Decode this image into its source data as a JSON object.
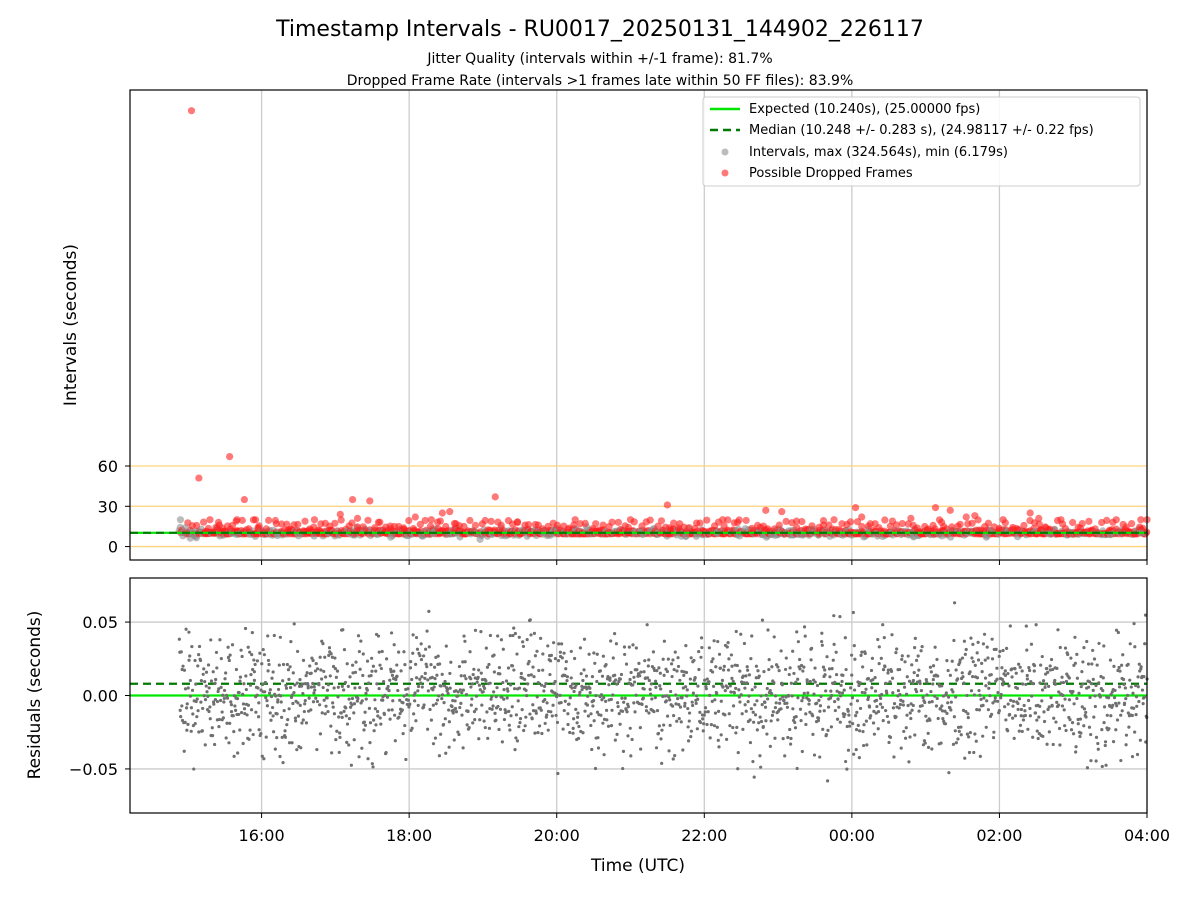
{
  "chart_data": [
    {
      "type": "scatter",
      "title": "Timestamp Intervals - RU0017_20250131_144902_226117",
      "subtitle_lines": [
        "Jitter Quality (intervals within +/-1 frame): 81.7%",
        "Dropped Frame Rate (intervals >1 frames late within 50 FF files): 83.9%"
      ],
      "xlabel": "",
      "ylabel": "Intervals (seconds)",
      "x_axis_kind": "time (UTC)",
      "xlim": [
        "2025-01-31 14:13",
        "2025-02-01 04:00"
      ],
      "ylim": [
        -10,
        340
      ],
      "yticks": [
        0,
        30,
        60
      ],
      "reference_lines_y": [
        0,
        30,
        60
      ],
      "reference_line_color": "#ffd37a",
      "grid": "vertical lines at x ticks",
      "legend_position": "top-right",
      "legend": [
        "Expected (10.240s), (25.00000 fps)",
        "Median (10.248 +/- 0.283 s), (24.98117 +/- 0.22 fps)",
        "Intervals, max (324.564s), min (6.179s)",
        "Possible Dropped Frames"
      ],
      "series": [
        {
          "name": "Expected (10.240s), (25.00000 fps)",
          "kind": "line",
          "y": 10.24,
          "color": "#00e600"
        },
        {
          "name": "Median (10.248 +/- 0.283 s), (24.98117 +/- 0.22 fps)",
          "kind": "dashed-line",
          "y": 10.248,
          "color": "#007a00"
        },
        {
          "name": "Intervals, max (324.564s), min (6.179s)",
          "kind": "points",
          "color": "#909090",
          "x": [
            "14:54",
            "14:56",
            "14:58",
            "15:02",
            "15:40",
            "16:30",
            "17:45",
            "18:20",
            "19:55",
            "21:10",
            "21:45",
            "22:10",
            "23:20",
            "00:40",
            "01:50",
            "02:40",
            "03:30",
            "03:55"
          ],
          "y": [
            20,
            8,
            14,
            6.2,
            9,
            8,
            7,
            9.5,
            8.5,
            9,
            7.5,
            10,
            8.5,
            9,
            8,
            9.5,
            9,
            10
          ]
        },
        {
          "name": "Possible Dropped Frames",
          "kind": "points",
          "color": "#ff2020",
          "x": [
            "15:03",
            "15:09",
            "15:34",
            "15:46",
            "15:40",
            "15:18",
            "15:25",
            "15:55",
            "16:12",
            "16:43",
            "17:04",
            "17:14",
            "17:18",
            "17:28",
            "17:35",
            "17:48",
            "18:05",
            "18:18",
            "18:27",
            "18:33",
            "18:38",
            "19:10",
            "19:28",
            "19:45",
            "20:15",
            "21:00",
            "21:30",
            "21:40",
            "22:15",
            "22:27",
            "22:50",
            "23:03",
            "23:15",
            "23:37",
            "00:03",
            "00:08",
            "00:15",
            "00:33",
            "00:48",
            "01:08",
            "01:13",
            "01:20",
            "01:33",
            "01:40",
            "02:03",
            "02:25",
            "02:32",
            "02:50",
            "03:35",
            "03:55",
            "04:00"
          ],
          "y": [
            324.6,
            51,
            67,
            35,
            20,
            20,
            18,
            20,
            17,
            20,
            24,
            35,
            21,
            34,
            18,
            15,
            22,
            20,
            25,
            26,
            17,
            37,
            18,
            16,
            20,
            20,
            31,
            17,
            20,
            18,
            27,
            26,
            19,
            16,
            29,
            22,
            17,
            19,
            21,
            29,
            18,
            27,
            22,
            23,
            20,
            25,
            21,
            20,
            20,
            20,
            20
          ]
        }
      ]
    },
    {
      "type": "scatter",
      "xlabel": "Time (UTC)",
      "ylabel": "Residuals (seconds)",
      "xlim": [
        "2025-01-31 14:13",
        "2025-02-01 04:00"
      ],
      "xticks": [
        "16:00",
        "18:00",
        "20:00",
        "22:00",
        "00:00",
        "02:00",
        "04:00"
      ],
      "ylim": [
        -0.08,
        0.08
      ],
      "yticks": [
        0.05,
        0.0,
        -0.05
      ],
      "ytick_labels": [
        "0.05",
        "0.00",
        "−0.05"
      ],
      "grid": "both",
      "series": [
        {
          "name": "expected",
          "kind": "line",
          "y": 0.0,
          "color": "#00e600"
        },
        {
          "name": "median",
          "kind": "dashed-line",
          "y": 0.008,
          "color": "#007a00"
        },
        {
          "name": "residuals",
          "kind": "points",
          "color": "#707070",
          "note_points": "dense cloud spanning 14:53 to 04:00 with std approx 0.02 s"
        }
      ]
    }
  ],
  "labels": {
    "title": "Timestamp Intervals - RU0017_20250131_144902_226117",
    "sub1": "Jitter Quality (intervals within +/-1 frame): 81.7%",
    "sub2": "Dropped Frame Rate (intervals >1 frames late within 50 FF files): 83.9%",
    "top_ylabel": "Intervals (seconds)",
    "bottom_ylabel": "Residuals (seconds)",
    "xlabel": "Time (UTC)",
    "top_yticks": [
      "0",
      "30",
      "60"
    ],
    "bottom_yticks": [
      "0.05",
      "0.00",
      "−0.05"
    ],
    "xticks": [
      "16:00",
      "18:00",
      "20:00",
      "22:00",
      "00:00",
      "02:00",
      "04:00"
    ],
    "legend": [
      "Expected (10.240s), (25.00000 fps)",
      "Median (10.248 +/- 0.283 s), (24.98117 +/- 0.22 fps)",
      "Intervals, max (324.564s), min (6.179s)",
      "Possible Dropped Frames"
    ]
  },
  "colors": {
    "expected": "#00e600",
    "median": "#007a00",
    "intervals": "#909090",
    "dropped": "#ff2020",
    "residuals": "#707070",
    "reference": "#ffd37a"
  }
}
